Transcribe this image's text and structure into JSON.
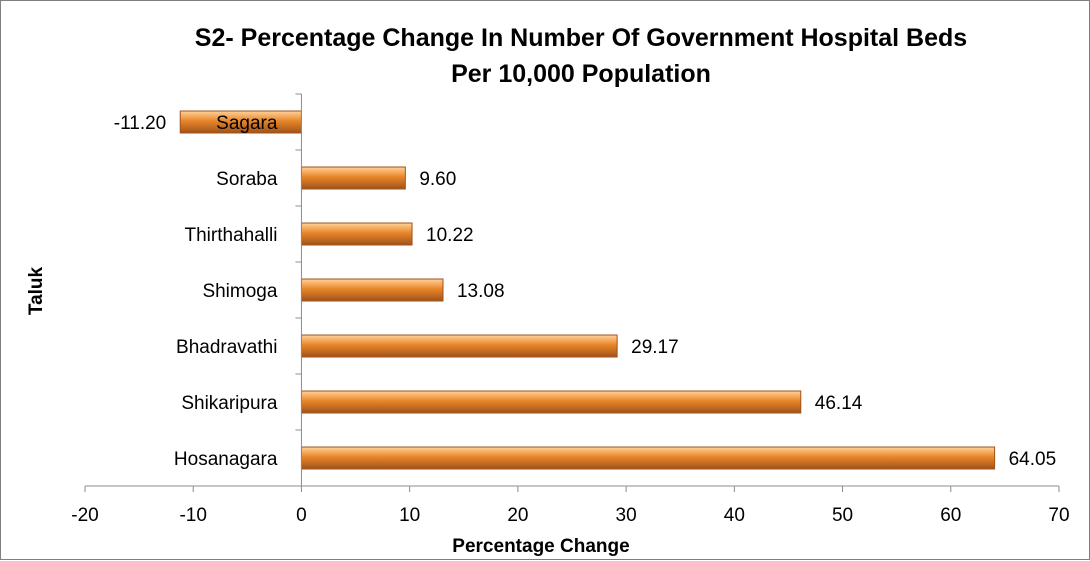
{
  "chart_data": {
    "type": "bar",
    "orientation": "horizontal",
    "title_line1": "S2- Percentage Change In Number Of Government Hospital Beds",
    "title_line2": "Per 10,000 Population",
    "xlabel": "Percentage Change",
    "ylabel": "Taluk",
    "xlim": [
      -20,
      70
    ],
    "xticks": [
      -20,
      -10,
      0,
      10,
      20,
      30,
      40,
      50,
      60,
      70
    ],
    "categories": [
      "Sagara",
      "Soraba",
      "Thirthahalli",
      "Shimoga",
      "Bhadravathi",
      "Shikaripura",
      "Hosanagara"
    ],
    "values": [
      -11.2,
      9.6,
      10.22,
      13.08,
      29.17,
      46.14,
      64.05
    ],
    "data_labels": [
      "-11.20",
      "9.60",
      "10.22",
      "13.08",
      "29.17",
      "46.14",
      "64.05"
    ],
    "grid": false,
    "legend": "none",
    "bar_color": "#E8862A",
    "bar_highlight": "#FFD29A",
    "bar_border": "#A0521A"
  }
}
